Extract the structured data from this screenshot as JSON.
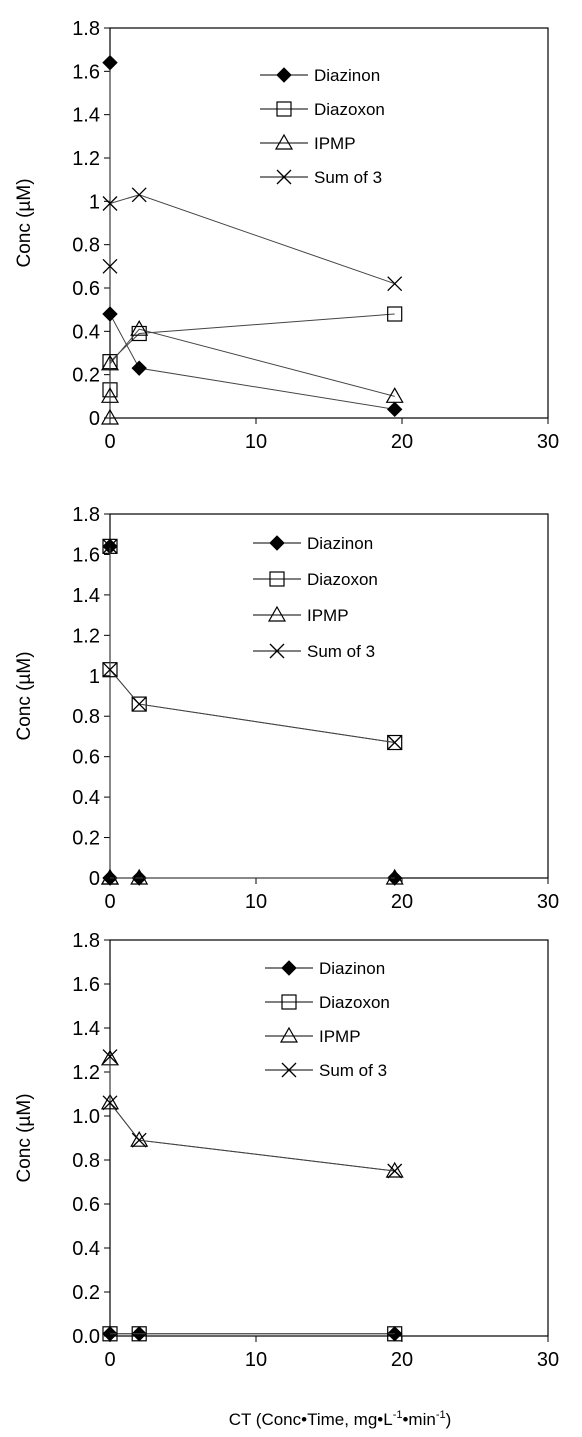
{
  "figure": {
    "xlabel_main": "CT (Conc•Time, mg•L",
    "xlabel_sup1": "-1",
    "xlabel_mid": "•min",
    "xlabel_sup2": "-1",
    "xlabel_end": ")"
  },
  "chart_data": [
    {
      "type": "line",
      "xlabel": "",
      "ylabel": "Conc (µM)",
      "xlim": [
        0,
        30
      ],
      "ylim": [
        0,
        1.8
      ],
      "x_ticks": [
        "0",
        "10",
        "20",
        "30"
      ],
      "y_ticks": [
        "0",
        "0.2",
        "0.4",
        "0.6",
        "0.8",
        "1",
        "1.2",
        "1.4",
        "1.6",
        "1.8"
      ],
      "grid": false,
      "legend_position": "top-right",
      "series": [
        {
          "name": "Diazinon",
          "marker": "filled-diamond",
          "x": [
            0,
            0,
            2,
            19.5
          ],
          "y": [
            1.64,
            0.48,
            0.23,
            0.04
          ]
        },
        {
          "name": "Diazoxon",
          "marker": "open-square",
          "x": [
            0,
            0,
            2,
            19.5
          ],
          "y": [
            0.13,
            0.26,
            0.39,
            0.48
          ]
        },
        {
          "name": "IPMP",
          "marker": "open-triangle",
          "x": [
            0,
            0,
            0,
            2,
            19.5
          ],
          "y": [
            0.0,
            0.1,
            0.25,
            0.41,
            0.1
          ]
        },
        {
          "name": "Sum of 3",
          "marker": "cross",
          "x": [
            0,
            0,
            2,
            19.5
          ],
          "y": [
            0.7,
            0.99,
            1.03,
            0.62
          ]
        }
      ]
    },
    {
      "type": "line",
      "xlabel": "",
      "ylabel": "Conc (µM)",
      "xlim": [
        0,
        30
      ],
      "ylim": [
        0,
        1.8
      ],
      "x_ticks": [
        "0",
        "10",
        "20",
        "30"
      ],
      "y_ticks": [
        "0",
        "0.2",
        "0.4",
        "0.6",
        "0.8",
        "1",
        "1.2",
        "1.4",
        "1.6",
        "1.8"
      ],
      "grid": false,
      "legend_position": "top-right",
      "series": [
        {
          "name": "Diazinon",
          "marker": "filled-diamond",
          "x": [
            0,
            0,
            2,
            19.5
          ],
          "y": [
            1.64,
            0.0,
            0.0,
            0.0
          ]
        },
        {
          "name": "Diazoxon",
          "marker": "open-square",
          "x": [
            0,
            0,
            2,
            19.5
          ],
          "y": [
            1.64,
            1.03,
            0.86,
            0.67
          ]
        },
        {
          "name": "IPMP",
          "marker": "open-triangle",
          "x": [
            0,
            0,
            2,
            19.5
          ],
          "y": [
            0.0,
            0.0,
            0.0,
            0.0
          ]
        },
        {
          "name": "Sum of 3",
          "marker": "cross",
          "x": [
            0,
            0,
            2,
            19.5
          ],
          "y": [
            1.64,
            1.03,
            0.86,
            0.67
          ]
        }
      ]
    },
    {
      "type": "line",
      "xlabel": "CT (Conc•Time, mg•L-1•min-1)",
      "ylabel": "Conc (µM)",
      "xlim": [
        0,
        30
      ],
      "ylim": [
        0,
        1.8
      ],
      "x_ticks": [
        "0",
        "10",
        "20",
        "30"
      ],
      "y_ticks": [
        "0.0",
        "0.2",
        "0.4",
        "0.6",
        "0.8",
        "1.0",
        "1.2",
        "1.4",
        "1.6",
        "1.8"
      ],
      "grid": false,
      "legend_position": "top-right",
      "series": [
        {
          "name": "Diazinon",
          "marker": "filled-diamond",
          "x": [
            0,
            2,
            19.5
          ],
          "y": [
            0.01,
            0.01,
            0.01
          ]
        },
        {
          "name": "Diazoxon",
          "marker": "open-square",
          "x": [
            0,
            2,
            19.5
          ],
          "y": [
            0.01,
            0.01,
            0.01
          ]
        },
        {
          "name": "IPMP",
          "marker": "open-triangle",
          "x": [
            0,
            0,
            2,
            19.5
          ],
          "y": [
            1.26,
            1.06,
            0.89,
            0.75
          ]
        },
        {
          "name": "Sum of 3",
          "marker": "cross",
          "x": [
            0,
            0,
            2,
            19.5
          ],
          "y": [
            1.27,
            1.06,
            0.89,
            0.75
          ]
        }
      ]
    }
  ]
}
